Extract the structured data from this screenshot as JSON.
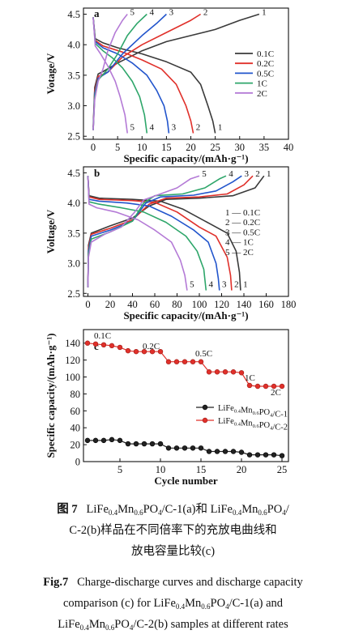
{
  "caption": {
    "cn_label": "图 7",
    "cn_line1": "LiFe0.4Mn0.6PO4/C-1(a)和 LiFe0.4Mn0.6PO4/",
    "cn_line2": "C-2(b)样品在不同倍率下的充放电曲线和",
    "cn_line3": "放电容量比较(c)",
    "en_label": "Fig.7",
    "en_line1": "Charge-discharge curves and discharge capacity",
    "en_line2": "comparison (c) for LiFe0.4Mn0.6PO4/C-1(a) and",
    "en_line3": "LiFe0.4Mn0.6PO4/C-2(b) samples at different rates"
  },
  "chart_data": [
    {
      "panel": "a",
      "type": "line",
      "xlabel": "Specific capacity/(mAh·g⁻¹)",
      "ylabel": "Votage/V",
      "xlim": [
        -2,
        40
      ],
      "ylim": [
        2.45,
        4.6
      ],
      "xticks": [
        0,
        5,
        10,
        15,
        20,
        25,
        30,
        35,
        40
      ],
      "yticks": [
        2.5,
        3.0,
        3.5,
        4.0,
        4.5
      ],
      "legend_position": "right",
      "legend": [
        "0.1C",
        "0.2C",
        "0.5C",
        "1C",
        "2C"
      ],
      "colors": [
        "#3a3a3a",
        "#e0302a",
        "#2255cc",
        "#2ea66a",
        "#b47ad6"
      ],
      "curve_numbers": [
        "1",
        "2",
        "3",
        "4",
        "5"
      ],
      "series": [
        {
          "name": "0.1C",
          "charge": [
            [
              0,
              2.65
            ],
            [
              0.3,
              3.3
            ],
            [
              1,
              3.52
            ],
            [
              2,
              3.56
            ],
            [
              5,
              3.7
            ],
            [
              10,
              3.9
            ],
            [
              15,
              4.05
            ],
            [
              20,
              4.15
            ],
            [
              25,
              4.25
            ],
            [
              30,
              4.4
            ],
            [
              34,
              4.5
            ]
          ],
          "discharge": [
            [
              0,
              4.45
            ],
            [
              0.4,
              4.1
            ],
            [
              2,
              4.03
            ],
            [
              5,
              3.95
            ],
            [
              10,
              3.85
            ],
            [
              15,
              3.72
            ],
            [
              20,
              3.55
            ],
            [
              22,
              3.35
            ],
            [
              23.5,
              3.0
            ],
            [
              24.5,
              2.75
            ],
            [
              25,
              2.55
            ]
          ]
        },
        {
          "name": "0.2C",
          "charge": [
            [
              0,
              2.6
            ],
            [
              0.3,
              3.25
            ],
            [
              1,
              3.48
            ],
            [
              3,
              3.55
            ],
            [
              6,
              3.8
            ],
            [
              10,
              4.0
            ],
            [
              15,
              4.2
            ],
            [
              20,
              4.4
            ],
            [
              22,
              4.5
            ]
          ],
          "discharge": [
            [
              0,
              4.45
            ],
            [
              0.4,
              4.07
            ],
            [
              2,
              3.98
            ],
            [
              6,
              3.88
            ],
            [
              10,
              3.75
            ],
            [
              14,
              3.6
            ],
            [
              17,
              3.35
            ],
            [
              19,
              3.0
            ],
            [
              20,
              2.75
            ],
            [
              20.5,
              2.55
            ]
          ]
        },
        {
          "name": "0.5C",
          "charge": [
            [
              0,
              2.6
            ],
            [
              0.3,
              3.2
            ],
            [
              1,
              3.45
            ],
            [
              3,
              3.55
            ],
            [
              6,
              3.85
            ],
            [
              10,
              4.15
            ],
            [
              13,
              4.35
            ],
            [
              15,
              4.5
            ]
          ],
          "discharge": [
            [
              0,
              4.45
            ],
            [
              0.4,
              4.05
            ],
            [
              2,
              3.95
            ],
            [
              5,
              3.85
            ],
            [
              8,
              3.7
            ],
            [
              11,
              3.5
            ],
            [
              13,
              3.25
            ],
            [
              14.5,
              3.0
            ],
            [
              15.2,
              2.75
            ],
            [
              15.5,
              2.55
            ]
          ]
        },
        {
          "name": "1C",
          "charge": [
            [
              0,
              2.6
            ],
            [
              0.3,
              3.15
            ],
            [
              1,
              3.42
            ],
            [
              3,
              3.6
            ],
            [
              5,
              3.85
            ],
            [
              7,
              4.15
            ],
            [
              9,
              4.35
            ],
            [
              11,
              4.5
            ]
          ],
          "discharge": [
            [
              0,
              4.45
            ],
            [
              0.4,
              4.02
            ],
            [
              2,
              3.9
            ],
            [
              4,
              3.78
            ],
            [
              6,
              3.62
            ],
            [
              8,
              3.4
            ],
            [
              9.5,
              3.15
            ],
            [
              10.5,
              2.85
            ],
            [
              11,
              2.55
            ]
          ]
        },
        {
          "name": "2C",
          "charge": [
            [
              0,
              2.6
            ],
            [
              0.3,
              3.1
            ],
            [
              1,
              3.4
            ],
            [
              2,
              3.6
            ],
            [
              3,
              3.9
            ],
            [
              4.5,
              4.2
            ],
            [
              6,
              4.4
            ],
            [
              7,
              4.5
            ]
          ],
          "discharge": [
            [
              0,
              4.45
            ],
            [
              0.4,
              3.98
            ],
            [
              1.5,
              3.85
            ],
            [
              3,
              3.65
            ],
            [
              4.5,
              3.4
            ],
            [
              5.5,
              3.15
            ],
            [
              6.5,
              2.85
            ],
            [
              7,
              2.55
            ]
          ]
        }
      ]
    },
    {
      "panel": "b",
      "type": "line",
      "xlabel": "Specific capacity/(mAh·g⁻¹)",
      "ylabel": "Voltage/V",
      "xlim": [
        -4,
        180
      ],
      "ylim": [
        2.45,
        4.6
      ],
      "xticks": [
        0,
        20,
        40,
        60,
        80,
        100,
        120,
        140,
        160,
        180
      ],
      "yticks": [
        2.5,
        3.0,
        3.5,
        4.0,
        4.5
      ],
      "legend_position": "right",
      "legend": [
        "1 — 0.1C",
        "2 — 0.2C",
        "3 — 0.5C",
        "4 — 1C",
        "5 — 2C"
      ],
      "colors": [
        "#3a3a3a",
        "#e0302a",
        "#2255cc",
        "#2ea66a",
        "#b47ad6"
      ],
      "curve_numbers": [
        "1",
        "2",
        "3",
        "4",
        "5"
      ],
      "series": [
        {
          "name": "0.1C",
          "charge": [
            [
              0,
              2.6
            ],
            [
              0.5,
              3.3
            ],
            [
              3,
              3.5
            ],
            [
              20,
              3.62
            ],
            [
              40,
              3.75
            ],
            [
              55,
              3.95
            ],
            [
              70,
              4.06
            ],
            [
              100,
              4.08
            ],
            [
              130,
              4.12
            ],
            [
              150,
              4.25
            ],
            [
              158,
              4.45
            ]
          ],
          "discharge": [
            [
              0,
              4.45
            ],
            [
              1,
              4.12
            ],
            [
              10,
              4.08
            ],
            [
              40,
              4.06
            ],
            [
              65,
              4.03
            ],
            [
              85,
              3.9
            ],
            [
              110,
              3.65
            ],
            [
              125,
              3.5
            ],
            [
              133,
              3.2
            ],
            [
              136,
              2.85
            ],
            [
              137,
              2.55
            ]
          ]
        },
        {
          "name": "0.2C",
          "charge": [
            [
              0,
              2.6
            ],
            [
              0.5,
              3.25
            ],
            [
              3,
              3.48
            ],
            [
              20,
              3.58
            ],
            [
              40,
              3.72
            ],
            [
              55,
              3.98
            ],
            [
              70,
              4.08
            ],
            [
              100,
              4.1
            ],
            [
              125,
              4.15
            ],
            [
              140,
              4.3
            ],
            [
              148,
              4.45
            ]
          ],
          "discharge": [
            [
              0,
              4.45
            ],
            [
              1,
              4.1
            ],
            [
              10,
              4.06
            ],
            [
              40,
              4.04
            ],
            [
              60,
              4.01
            ],
            [
              80,
              3.85
            ],
            [
              100,
              3.6
            ],
            [
              115,
              3.45
            ],
            [
              125,
              3.1
            ],
            [
              128,
              2.8
            ],
            [
              129,
              2.55
            ]
          ]
        },
        {
          "name": "0.5C",
          "charge": [
            [
              0,
              2.6
            ],
            [
              0.5,
              3.2
            ],
            [
              3,
              3.45
            ],
            [
              20,
              3.55
            ],
            [
              40,
              3.7
            ],
            [
              52,
              4.0
            ],
            [
              65,
              4.1
            ],
            [
              95,
              4.13
            ],
            [
              115,
              4.2
            ],
            [
              130,
              4.35
            ],
            [
              138,
              4.45
            ]
          ],
          "discharge": [
            [
              0,
              4.45
            ],
            [
              1,
              4.06
            ],
            [
              10,
              4.03
            ],
            [
              35,
              4.0
            ],
            [
              55,
              3.95
            ],
            [
              75,
              3.78
            ],
            [
              95,
              3.55
            ],
            [
              108,
              3.35
            ],
            [
              115,
              3.0
            ],
            [
              117,
              2.75
            ],
            [
              118,
              2.55
            ]
          ]
        },
        {
          "name": "1C",
          "charge": [
            [
              0,
              2.6
            ],
            [
              0.5,
              3.15
            ],
            [
              3,
              3.4
            ],
            [
              20,
              3.52
            ],
            [
              40,
              3.7
            ],
            [
              50,
              4.0
            ],
            [
              60,
              4.12
            ],
            [
              85,
              4.15
            ],
            [
              105,
              4.25
            ],
            [
              118,
              4.4
            ],
            [
              124,
              4.45
            ]
          ],
          "discharge": [
            [
              0,
              4.45
            ],
            [
              1,
              4.02
            ],
            [
              10,
              3.98
            ],
            [
              30,
              3.92
            ],
            [
              50,
              3.85
            ],
            [
              70,
              3.68
            ],
            [
              88,
              3.45
            ],
            [
              98,
              3.2
            ],
            [
              104,
              2.9
            ],
            [
              106,
              2.55
            ]
          ]
        },
        {
          "name": "2C",
          "charge": [
            [
              0,
              2.6
            ],
            [
              0.5,
              3.1
            ],
            [
              3,
              3.35
            ],
            [
              15,
              3.48
            ],
            [
              30,
              3.6
            ],
            [
              42,
              3.85
            ],
            [
              50,
              4.05
            ],
            [
              65,
              4.15
            ],
            [
              80,
              4.25
            ],
            [
              92,
              4.4
            ],
            [
              100,
              4.45
            ]
          ],
          "discharge": [
            [
              0,
              4.45
            ],
            [
              1,
              3.98
            ],
            [
              8,
              3.92
            ],
            [
              25,
              3.85
            ],
            [
              45,
              3.72
            ],
            [
              60,
              3.55
            ],
            [
              75,
              3.35
            ],
            [
              83,
              3.05
            ],
            [
              87,
              2.8
            ],
            [
              89,
              2.55
            ]
          ]
        }
      ]
    },
    {
      "panel": "c",
      "type": "line",
      "xlabel": "Cycle number",
      "ylabel": "Specific capacity/(mAh·g⁻¹)",
      "xlim": [
        0.5,
        25.8
      ],
      "ylim": [
        0,
        156
      ],
      "xticks": [
        5,
        10,
        15,
        20,
        25
      ],
      "yticks": [
        0,
        20,
        40,
        60,
        80,
        100,
        120,
        140
      ],
      "legend_position": "right",
      "legend": [
        "LiFe0.4Mn0.6PO4/C-1",
        "LiFe0.4Mn0.6PO4/C-2"
      ],
      "rate_annotations": [
        "0.1C",
        "0.2C",
        "0.5C",
        "1C",
        "2C"
      ],
      "series": [
        {
          "name": "LiFe0.4Mn0.6PO4/C-1",
          "color": "#222222",
          "x": [
            1,
            2,
            3,
            4,
            5,
            6,
            7,
            8,
            9,
            10,
            11,
            12,
            13,
            14,
            15,
            16,
            17,
            18,
            19,
            20,
            21,
            22,
            23,
            24,
            25
          ],
          "y": [
            25,
            25,
            25,
            26,
            25,
            21,
            21,
            21,
            21,
            21,
            16,
            16,
            16,
            16,
            16,
            12,
            12,
            12,
            12,
            11,
            8,
            8,
            8,
            8,
            7
          ]
        },
        {
          "name": "LiFe0.4Mn0.6PO4/C-2",
          "color": "#e0302a",
          "x": [
            1,
            2,
            3,
            4,
            5,
            6,
            7,
            8,
            9,
            10,
            11,
            12,
            13,
            14,
            15,
            16,
            17,
            18,
            19,
            20,
            21,
            22,
            23,
            24,
            25
          ],
          "y": [
            140,
            139,
            138,
            137,
            135,
            131,
            130,
            130,
            130,
            130,
            118,
            118,
            118,
            118,
            118,
            106,
            106,
            106,
            106,
            105,
            90,
            89,
            89,
            89,
            89
          ]
        }
      ]
    }
  ]
}
